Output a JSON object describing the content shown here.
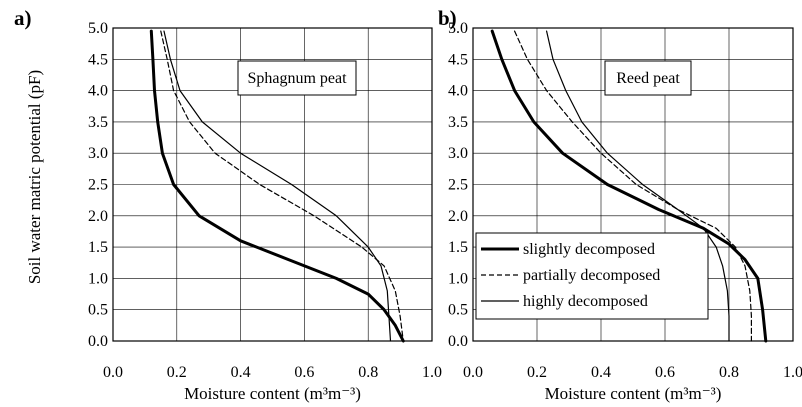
{
  "figure": {
    "ylabel": "Soil water matric potential (pF)"
  },
  "chart_data": [
    {
      "panel_label": "a)",
      "type": "line",
      "inset_label": "Sphagnum peat",
      "xlabel": "Moisture content (m³m⁻³)",
      "ylabel": "Soil water matric potential (pF)",
      "xlim": [
        0.0,
        1.0
      ],
      "ylim": [
        0.0,
        5.0
      ],
      "x_ticks": [
        0.0,
        0.2,
        0.4,
        0.6,
        0.8,
        1.0
      ],
      "y_ticks": [
        0.0,
        0.5,
        1.0,
        1.5,
        2.0,
        2.5,
        3.0,
        3.5,
        4.0,
        4.5,
        5.0
      ],
      "grid": true,
      "series": [
        {
          "name": "slightly decomposed",
          "style": "thick",
          "points": [
            [
              0.12,
              4.95
            ],
            [
              0.125,
              4.5
            ],
            [
              0.13,
              4.0
            ],
            [
              0.14,
              3.5
            ],
            [
              0.155,
              3.0
            ],
            [
              0.19,
              2.5
            ],
            [
              0.27,
              2.0
            ],
            [
              0.4,
              1.6
            ],
            [
              0.55,
              1.3
            ],
            [
              0.7,
              1.0
            ],
            [
              0.8,
              0.75
            ],
            [
              0.85,
              0.5
            ],
            [
              0.885,
              0.25
            ],
            [
              0.91,
              0.0
            ]
          ]
        },
        {
          "name": "partially decomposed",
          "style": "dashed",
          "points": [
            [
              0.15,
              4.95
            ],
            [
              0.17,
              4.5
            ],
            [
              0.19,
              4.0
            ],
            [
              0.24,
              3.5
            ],
            [
              0.32,
              3.0
            ],
            [
              0.46,
              2.5
            ],
            [
              0.63,
              2.0
            ],
            [
              0.78,
              1.5
            ],
            [
              0.85,
              1.2
            ],
            [
              0.885,
              0.8
            ],
            [
              0.9,
              0.4
            ],
            [
              0.91,
              0.0
            ]
          ]
        },
        {
          "name": "highly decomposed",
          "style": "thin",
          "points": [
            [
              0.16,
              4.95
            ],
            [
              0.18,
              4.5
            ],
            [
              0.21,
              4.0
            ],
            [
              0.28,
              3.5
            ],
            [
              0.4,
              3.0
            ],
            [
              0.56,
              2.5
            ],
            [
              0.7,
              2.0
            ],
            [
              0.8,
              1.5
            ],
            [
              0.84,
              1.2
            ],
            [
              0.86,
              0.8
            ],
            [
              0.865,
              0.4
            ],
            [
              0.87,
              0.0
            ]
          ]
        }
      ]
    },
    {
      "panel_label": "b)",
      "type": "line",
      "inset_label": "Reed peat",
      "xlabel": "Moisture content (m³m⁻³)",
      "xlim": [
        0.0,
        1.0
      ],
      "ylim": [
        0.0,
        5.0
      ],
      "x_ticks": [
        0.0,
        0.2,
        0.4,
        0.6,
        0.8,
        1.0
      ],
      "y_ticks": [
        0.0,
        0.5,
        1.0,
        1.5,
        2.0,
        2.5,
        3.0,
        3.5,
        4.0,
        4.5,
        5.0
      ],
      "grid": true,
      "legend": "bottom-left",
      "series": [
        {
          "name": "slightly decomposed",
          "style": "thick",
          "points": [
            [
              0.06,
              4.95
            ],
            [
              0.09,
              4.5
            ],
            [
              0.13,
              4.0
            ],
            [
              0.19,
              3.5
            ],
            [
              0.28,
              3.0
            ],
            [
              0.42,
              2.5
            ],
            [
              0.58,
              2.1
            ],
            [
              0.72,
              1.8
            ],
            [
              0.8,
              1.55
            ],
            [
              0.85,
              1.3
            ],
            [
              0.89,
              1.0
            ],
            [
              0.905,
              0.5
            ],
            [
              0.915,
              0.0
            ]
          ]
        },
        {
          "name": "partially decomposed",
          "style": "dashed",
          "points": [
            [
              0.13,
              4.95
            ],
            [
              0.17,
              4.5
            ],
            [
              0.23,
              4.0
            ],
            [
              0.31,
              3.5
            ],
            [
              0.4,
              3.0
            ],
            [
              0.51,
              2.5
            ],
            [
              0.64,
              2.1
            ],
            [
              0.76,
              1.8
            ],
            [
              0.82,
              1.5
            ],
            [
              0.85,
              1.2
            ],
            [
              0.865,
              0.8
            ],
            [
              0.87,
              0.4
            ],
            [
              0.87,
              0.0
            ]
          ]
        },
        {
          "name": "highly decomposed",
          "style": "thin",
          "points": [
            [
              0.23,
              4.95
            ],
            [
              0.25,
              4.5
            ],
            [
              0.29,
              4.0
            ],
            [
              0.34,
              3.5
            ],
            [
              0.42,
              3.0
            ],
            [
              0.53,
              2.5
            ],
            [
              0.64,
              2.1
            ],
            [
              0.72,
              1.8
            ],
            [
              0.76,
              1.5
            ],
            [
              0.78,
              1.2
            ],
            [
              0.795,
              0.8
            ],
            [
              0.8,
              0.4
            ],
            [
              0.8,
              0.0
            ]
          ]
        }
      ]
    }
  ]
}
